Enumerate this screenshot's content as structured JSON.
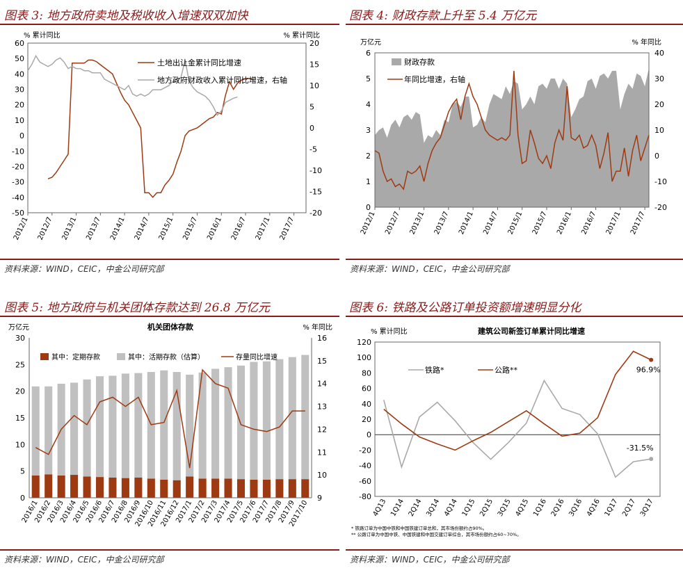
{
  "colors": {
    "accent": "#8b1a1a",
    "series_red": "#9e3a12",
    "series_gray": "#a9a9a9",
    "bar_red": "#9e3a12",
    "bar_gray": "#c0c0c0"
  },
  "panels": [
    {
      "title": "图表 3: 地方政府卖地及税收收入增速双双加快",
      "source": "资料来源：WIND，CEIC，中金公司研究部"
    },
    {
      "title": "图表 4: 财政存款上升至 5.4 万亿元",
      "source": "资料来源：WIND，CEIC，中金公司研究部"
    },
    {
      "title": "图表 5: 地方政府与机关团体存款达到 26.8 万亿元",
      "source": "资料来源：WIND，CEIC，中金公司研究部"
    },
    {
      "title": "图表 6: 铁路及公路订单投资额增速明显分化",
      "source": "资料来源：WIND，CEIC，中金公司研究部"
    }
  ],
  "chart_data": [
    {
      "type": "line",
      "ylabel_left": "% 累计同比",
      "ylabel_right": "% 累计同比",
      "ylim_left": [
        -50,
        60
      ],
      "ylim_right": [
        -20,
        20
      ],
      "x_ticks": [
        "2012/1",
        "2012/7",
        "2013/1",
        "2013/7",
        "2014/1",
        "2014/7",
        "2015/1",
        "2015/7",
        "2016/1",
        "2016/7",
        "2017/1",
        "2017/7"
      ],
      "series": [
        {
          "name": "土地出让金累计同比增速",
          "axis": "left",
          "start": "2012/6",
          "values": [
            -28,
            -27,
            -24,
            -20,
            -16,
            -12,
            47,
            47,
            47,
            47,
            49,
            49,
            48,
            46,
            44,
            42,
            40,
            34,
            28,
            23,
            20,
            15,
            10,
            5,
            -37,
            -37,
            -40,
            -37,
            -37,
            -32,
            -29,
            -25,
            -17,
            -10,
            0,
            3,
            4,
            5,
            7,
            9,
            11,
            12,
            15,
            14,
            26,
            35,
            30,
            34,
            36,
            37,
            37,
            36
          ]
        },
        {
          "name": "地方政府财政收入累计同比增速，右轴",
          "axis": "right",
          "start": "2012/1",
          "values": [
            13.5,
            15,
            17,
            15.5,
            15,
            14.5,
            15,
            16,
            16.5,
            15.5,
            14,
            14.5,
            14,
            14,
            13.5,
            13.5,
            13,
            13,
            13,
            11.5,
            11,
            10.5,
            10,
            9.5,
            9,
            10,
            8,
            7.5,
            8,
            7.5,
            8,
            9,
            9,
            9,
            9.5,
            10,
            11,
            11,
            12,
            16,
            11,
            9.5,
            8.5,
            8,
            7.5,
            6.5,
            5,
            3,
            4,
            6,
            6.5,
            7,
            7.3
          ]
        }
      ]
    },
    {
      "type": "area+line",
      "ylabel_left": "万亿元",
      "ylabel_right": "% 年同比",
      "ylim_left": [
        0,
        6
      ],
      "ylim_right": [
        -20,
        40
      ],
      "x_ticks": [
        "2012/1",
        "2012/7",
        "2013/1",
        "2013/7",
        "2014/1",
        "2014/7",
        "2015/1",
        "2015/7",
        "2016/1",
        "2016/7",
        "2017/1",
        "2017/7"
      ],
      "series": [
        {
          "name": "财政存款",
          "axis": "left",
          "values": [
            2.8,
            3.0,
            3.1,
            2.7,
            3.2,
            3.4,
            3.1,
            3.5,
            3.6,
            3.4,
            3.7,
            3.6,
            2.5,
            2.8,
            2.7,
            3.0,
            2.8,
            3.4,
            3.3,
            4.0,
            4.1,
            3.9,
            4.3,
            4.3,
            3.1,
            3.2,
            3.5,
            3.3,
            4.0,
            4.4,
            4.3,
            4.2,
            4.7,
            4.4,
            4.9,
            4.8,
            3.8,
            4.0,
            4.3,
            4.0,
            4.7,
            4.8,
            4.6,
            5.0,
            5.0,
            4.6,
            5.0,
            4.8,
            3.5,
            3.8,
            4.2,
            4.3,
            4.9,
            5.0,
            4.6,
            5.1,
            5.2,
            5.0,
            5.3,
            5.3,
            3.8,
            4.4,
            4.8,
            4.6,
            5.2,
            5.1,
            4.7,
            5.4
          ]
        },
        {
          "name": "年同比增速，右轴",
          "axis": "right",
          "values": [
            2,
            1,
            -6,
            -10,
            -9,
            -12,
            -11,
            -13,
            -6,
            -7,
            -6,
            -4,
            -10,
            -3,
            2,
            5,
            7,
            12,
            17,
            20,
            22,
            14,
            23,
            28,
            23,
            20,
            15,
            10,
            8,
            7,
            6,
            7,
            6,
            8,
            33,
            8,
            -3,
            -2,
            10,
            5,
            -1,
            -3,
            0,
            -5,
            5,
            10,
            6,
            27,
            7,
            6,
            8,
            3,
            4,
            8,
            4,
            -5,
            1,
            9,
            -10,
            -6,
            -6,
            3,
            -8,
            2,
            8,
            -2,
            3,
            8
          ]
        }
      ]
    },
    {
      "type": "stacked_bar+line",
      "title": "机关团体存款",
      "ylabel_left": "万亿元",
      "ylabel_right": "% 年同比",
      "ylim_left": [
        0,
        30
      ],
      "ylim_right": [
        9,
        16
      ],
      "categories": [
        "2016/1",
        "2016/2",
        "2016/3",
        "2016/4",
        "2016/5",
        "2016/6",
        "2016/7",
        "2016/8",
        "2016/9",
        "2016/10",
        "2016/11",
        "2016/12",
        "2017/1",
        "2017/2",
        "2017/3",
        "2017/4",
        "2017/5",
        "2017/6",
        "2017/7",
        "2017/8",
        "2017/9",
        "2017/10"
      ],
      "series": [
        {
          "name": "其中：定期存款",
          "values": [
            4.2,
            4.4,
            4.2,
            4.3,
            4.0,
            3.9,
            3.8,
            3.7,
            3.8,
            3.6,
            3.4,
            3.3,
            4.0,
            3.6,
            3.6,
            3.6,
            3.5,
            3.4,
            3.4,
            3.5,
            3.5,
            3.5
          ]
        },
        {
          "name": "其中：活期存款（估算）",
          "values": [
            16.7,
            16.5,
            17.2,
            17.3,
            18.2,
            18.9,
            19.1,
            19.6,
            19.6,
            20.0,
            20.5,
            20.3,
            19.1,
            19.9,
            20.6,
            20.9,
            21.3,
            22.1,
            22.2,
            22.5,
            22.9,
            23.3
          ]
        },
        {
          "name": "存量同比增速",
          "axis": "right",
          "values": [
            11.2,
            10.9,
            12.0,
            12.6,
            12.2,
            13.2,
            13.4,
            13.0,
            13.4,
            12.2,
            12.3,
            13.7,
            10.3,
            14.6,
            14.0,
            13.8,
            12.2,
            12.0,
            11.9,
            12.1,
            12.8,
            12.8
          ]
        }
      ]
    },
    {
      "type": "line",
      "title": "建筑公司新签订单累计同比增速",
      "ylabel": "% 累计同比",
      "ylim": [
        -80,
        120
      ],
      "categories": [
        "4Q13",
        "1Q14",
        "2Q14",
        "3Q14",
        "4Q14",
        "1Q15",
        "2Q15",
        "3Q15",
        "4Q15",
        "1Q16",
        "2Q16",
        "3Q16",
        "4Q16",
        "1Q17",
        "2Q17",
        "3Q17"
      ],
      "series": [
        {
          "name": "铁路*",
          "values": [
            45,
            -42,
            23,
            42,
            18,
            -10,
            -32,
            -10,
            15,
            70,
            34,
            26,
            1,
            -55,
            -35,
            -31.5
          ]
        },
        {
          "name": "公路**",
          "values": [
            33,
            14,
            -3,
            -12,
            -20,
            -8,
            3,
            17,
            31,
            14,
            -2,
            2,
            22,
            78,
            108,
            96.9
          ]
        }
      ],
      "annotations": [
        "96.9%",
        "-31.5%"
      ],
      "notes": [
        "* 铁路订单为中国中铁和中国铁建订单总和，其市场份额约占90%。",
        "** 公路订单为中国中铁、中国铁建和中国交建订单综合，其市场份额约占60~70%。"
      ]
    }
  ]
}
